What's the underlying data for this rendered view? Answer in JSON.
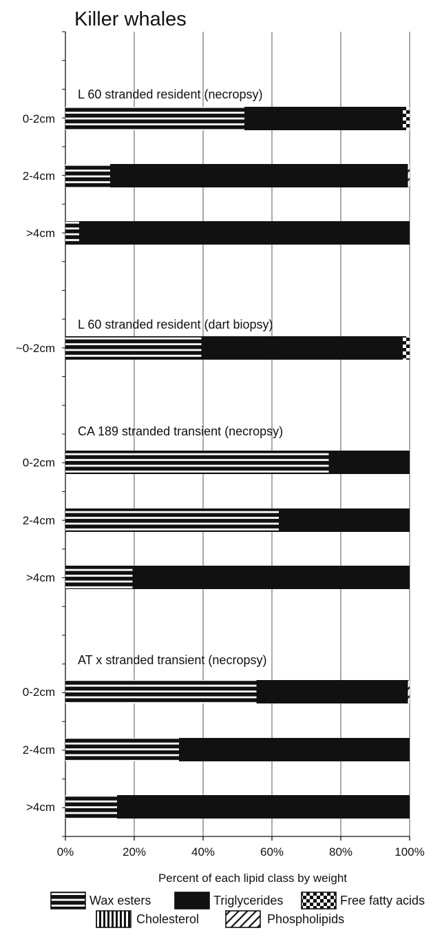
{
  "chart_data": {
    "type": "bar",
    "stacked": "horizontal-100-percent",
    "title": "Killer whales",
    "xlabel": "Percent of each lipid class by weight",
    "xlim": [
      0,
      100
    ],
    "x_ticks": [
      "0%",
      "20%",
      "40%",
      "60%",
      "80%",
      "100%"
    ],
    "grid": "vertical",
    "legend_position": "bottom",
    "legend": [
      "Wax esters",
      "Triglycerides",
      "Free fatty acids",
      "Cholesterol",
      "Phospholipids"
    ],
    "groups": [
      {
        "name": "L 60 stranded resident (necropsy)",
        "bars": [
          {
            "label": "0-2cm",
            "values": {
              "Wax esters": 52,
              "Triglycerides": 46,
              "Free fatty acids": 2,
              "Cholesterol": 0,
              "Phospholipids": 0
            }
          },
          {
            "label": "2-4cm",
            "values": {
              "Wax esters": 13,
              "Triglycerides": 86.5,
              "Free fatty acids": 0,
              "Cholesterol": 0,
              "Phospholipids": 0.5
            }
          },
          {
            "label": ">4cm",
            "values": {
              "Wax esters": 4,
              "Triglycerides": 96,
              "Free fatty acids": 0,
              "Cholesterol": 0,
              "Phospholipids": 0
            }
          }
        ]
      },
      {
        "name": "L 60 stranded resident (dart biopsy)",
        "bars": [
          {
            "label": "~0-2cm",
            "values": {
              "Wax esters": 39.5,
              "Triglycerides": 58.5,
              "Free fatty acids": 2,
              "Cholesterol": 0,
              "Phospholipids": 0
            }
          }
        ]
      },
      {
        "name": "CA 189 stranded transient (necropsy)",
        "bars": [
          {
            "label": "0-2cm",
            "values": {
              "Wax esters": 76.5,
              "Triglycerides": 23.5,
              "Free fatty acids": 0,
              "Cholesterol": 0,
              "Phospholipids": 0
            }
          },
          {
            "label": "2-4cm",
            "values": {
              "Wax esters": 62,
              "Triglycerides": 38,
              "Free fatty acids": 0,
              "Cholesterol": 0,
              "Phospholipids": 0
            }
          },
          {
            "label": ">4cm",
            "values": {
              "Wax esters": 19.5,
              "Triglycerides": 80.5,
              "Free fatty acids": 0,
              "Cholesterol": 0,
              "Phospholipids": 0
            }
          }
        ]
      },
      {
        "name": "AT x stranded transient (necropsy)",
        "bars": [
          {
            "label": "0-2cm",
            "values": {
              "Wax esters": 55.5,
              "Triglycerides": 44,
              "Free fatty acids": 0,
              "Cholesterol": 0,
              "Phospholipids": 0.5
            }
          },
          {
            "label": "2-4cm",
            "values": {
              "Wax esters": 33,
              "Triglycerides": 67,
              "Free fatty acids": 0,
              "Cholesterol": 0,
              "Phospholipids": 0
            }
          },
          {
            "label": ">4cm",
            "values": {
              "Wax esters": 15,
              "Triglycerides": 85,
              "Free fatty acids": 0,
              "Cholesterol": 0,
              "Phospholipids": 0
            }
          }
        ]
      }
    ]
  }
}
